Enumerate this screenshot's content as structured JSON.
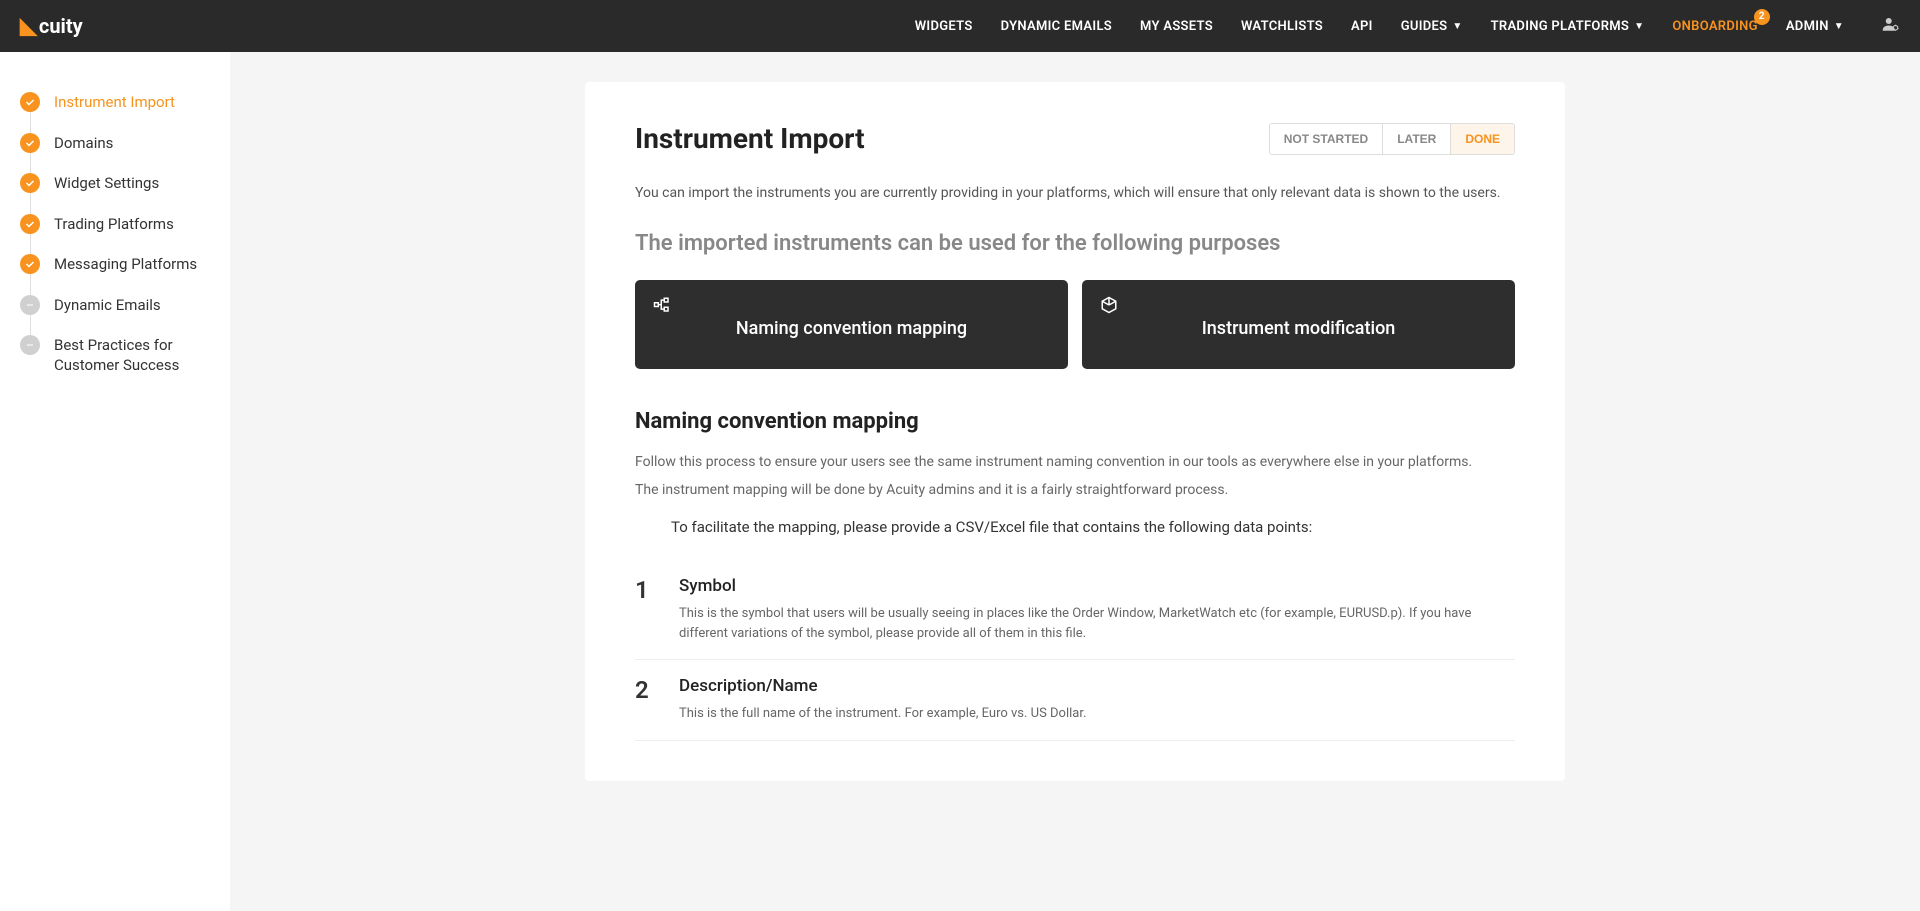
{
  "brand": "cuity",
  "nav": {
    "items": [
      {
        "label": "WIDGETS",
        "dropdown": false
      },
      {
        "label": "DYNAMIC EMAILS",
        "dropdown": false
      },
      {
        "label": "MY ASSETS",
        "dropdown": false
      },
      {
        "label": "WATCHLISTS",
        "dropdown": false
      },
      {
        "label": "API",
        "dropdown": false
      },
      {
        "label": "GUIDES",
        "dropdown": true
      },
      {
        "label": "TRADING PLATFORMS",
        "dropdown": true
      },
      {
        "label": "ONBOARDING",
        "dropdown": false,
        "active": true,
        "badge": "2"
      },
      {
        "label": "ADMIN",
        "dropdown": true
      }
    ]
  },
  "sidebar": {
    "items": [
      {
        "label": "Instrument Import",
        "status": "done",
        "active": true
      },
      {
        "label": "Domains",
        "status": "done"
      },
      {
        "label": "Widget Settings",
        "status": "done"
      },
      {
        "label": "Trading Platforms",
        "status": "done"
      },
      {
        "label": "Messaging Platforms",
        "status": "done"
      },
      {
        "label": "Dynamic Emails",
        "status": "pending"
      },
      {
        "label": "Best Practices for Customer Success",
        "status": "pending"
      }
    ]
  },
  "content": {
    "title": "Instrument Import",
    "status_buttons": [
      "NOT STARTED",
      "LATER",
      "DONE"
    ],
    "status_active": "DONE",
    "intro": "You can import the instruments you are currently providing in your platforms, which will ensure that only relevant data is shown to the users.",
    "subheading": "The imported instruments can be used for the following purposes",
    "tiles": [
      {
        "title": "Naming convention mapping",
        "icon": "hierarchy"
      },
      {
        "title": "Instrument modification",
        "icon": "cube"
      }
    ],
    "section_title": "Naming convention mapping",
    "para1": "Follow this process to ensure your users see the same instrument naming convention in our tools as everywhere else in your platforms.",
    "para2": "The instrument mapping will be done by Acuity admins and it is a fairly straightforward process.",
    "lead": "To facilitate the mapping, please provide a CSV/Excel file that contains the following data points:",
    "steps": [
      {
        "num": "1",
        "title": "Symbol",
        "desc": "This is the symbol that users will be usually seeing in places like the Order Window, MarketWatch etc (for example, EURUSD.p). If you have different variations of the symbol, please provide all of them in this file."
      },
      {
        "num": "2",
        "title": "Description/Name",
        "desc": "This is the full name of the instrument. For example, Euro vs. US Dollar."
      }
    ]
  },
  "colors": {
    "accent": "#f7931e",
    "dark": "#2a2a2a",
    "tile": "#2e2e2e"
  }
}
